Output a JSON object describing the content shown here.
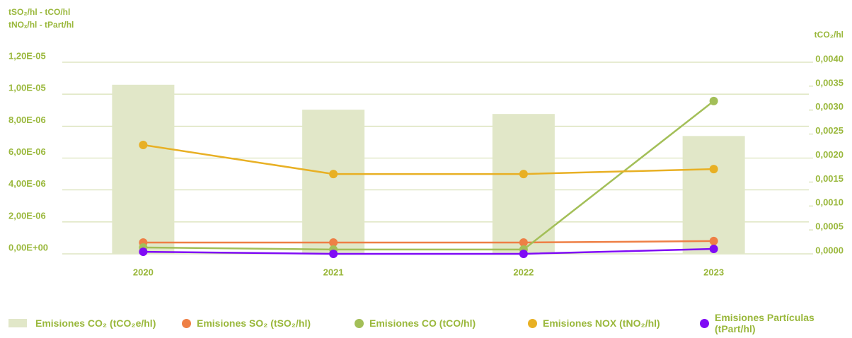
{
  "chart_data": {
    "type": "combo",
    "y_title_lines": [
      "tSO₂/hl - tCO/hl",
      "tNOₓ/hl - tPart/hl"
    ],
    "y2_title": "tCO₂/hl",
    "categories": [
      "2020",
      "2021",
      "2022",
      "2023"
    ],
    "ylim": [
      0,
      1.2e-05
    ],
    "yticks": [
      {
        "value": 0,
        "label": "0,00E+00"
      },
      {
        "value": 2e-06,
        "label": "2,00E-06"
      },
      {
        "value": 4e-06,
        "label": "4,00E-06"
      },
      {
        "value": 6e-06,
        "label": "6,00E-06"
      },
      {
        "value": 8e-06,
        "label": "8,00E-06"
      },
      {
        "value": 1e-05,
        "label": "1,00E-05"
      },
      {
        "value": 1.2e-05,
        "label": "1,20E-05"
      }
    ],
    "y2lim": [
      0,
      0.004
    ],
    "y2ticks": [
      {
        "value": 0,
        "label": "0,0000"
      },
      {
        "value": 0.0005,
        "label": "0,0005"
      },
      {
        "value": 0.001,
        "label": "0,0010"
      },
      {
        "value": 0.0015,
        "label": "0,0015"
      },
      {
        "value": 0.002,
        "label": "0,0020"
      },
      {
        "value": 0.0025,
        "label": "0,0025"
      },
      {
        "value": 0.003,
        "label": "0,0030"
      },
      {
        "value": 0.0035,
        "label": "0,0035"
      },
      {
        "value": 0.004,
        "label": "0,0040"
      }
    ],
    "grid": true,
    "series": [
      {
        "name": "Emisiones CO₂ (tCO₂e/hl)",
        "type": "bar",
        "axis": "y2",
        "color": "#e1e7c8",
        "values": [
          0.00353,
          0.00301,
          0.00292,
          0.00246
        ]
      },
      {
        "name": "Emisiones SO₂ (tSO₂/hl)",
        "type": "line",
        "color": "#ee7f45",
        "values": [
          7.1e-07,
          7.1e-07,
          7.1e-07,
          8e-07
        ]
      },
      {
        "name": "Emisiones CO (tCO/hl)",
        "type": "line",
        "color": "#a3bf58",
        "values": [
          4e-07,
          2.7e-07,
          2.7e-07,
          9.57e-06
        ]
      },
      {
        "name": "Emisiones NOX (tNO₂/hl)",
        "type": "line",
        "color": "#e8b024",
        "values": [
          6.82e-06,
          5e-06,
          5e-06,
          5.31e-06
        ]
      },
      {
        "name": "Emisiones Partículas (tPart/hl)",
        "type": "line",
        "color": "#7f0bf5",
        "values": [
          1.3e-07,
          0,
          0,
          3.1e-07
        ]
      }
    ]
  }
}
